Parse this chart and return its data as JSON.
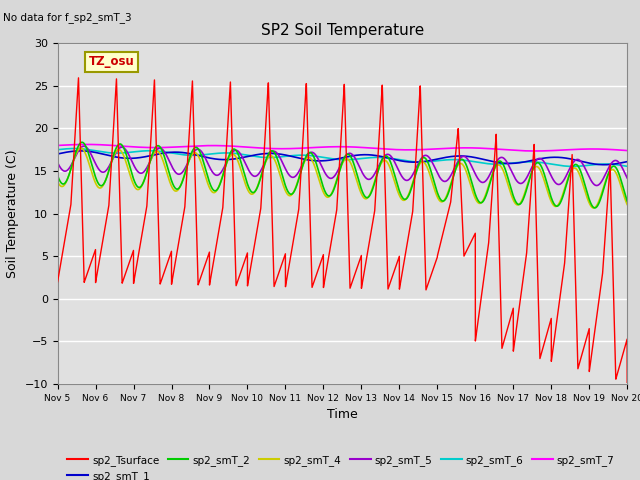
{
  "title": "SP2 Soil Temperature",
  "note": "No data for f_sp2_smT_3",
  "xlabel": "Time",
  "ylabel": "Soil Temperature (C)",
  "ylim": [
    -10,
    30
  ],
  "xlim": [
    0,
    15
  ],
  "xtick_labels": [
    "Nov 5",
    "Nov 6",
    "Nov 7",
    "Nov 8",
    "Nov 9",
    "Nov 10",
    "Nov 11",
    "Nov 12",
    "Nov 13",
    "Nov 14",
    "Nov 15",
    "Nov 16",
    "Nov 17",
    "Nov 18",
    "Nov 19",
    "Nov 20"
  ],
  "tz_label": "TZ_osu",
  "bg_color": "#e0e0e0",
  "fig_bg_color": "#d8d8d8",
  "series": {
    "sp2_Tsurface": {
      "color": "#ff0000"
    },
    "sp2_smT_1": {
      "color": "#0000cc"
    },
    "sp2_smT_2": {
      "color": "#00cc00"
    },
    "sp2_smT_4": {
      "color": "#cccc00"
    },
    "sp2_smT_5": {
      "color": "#9900cc"
    },
    "sp2_smT_6": {
      "color": "#00cccc"
    },
    "sp2_smT_7": {
      "color": "#ff00ff"
    }
  }
}
